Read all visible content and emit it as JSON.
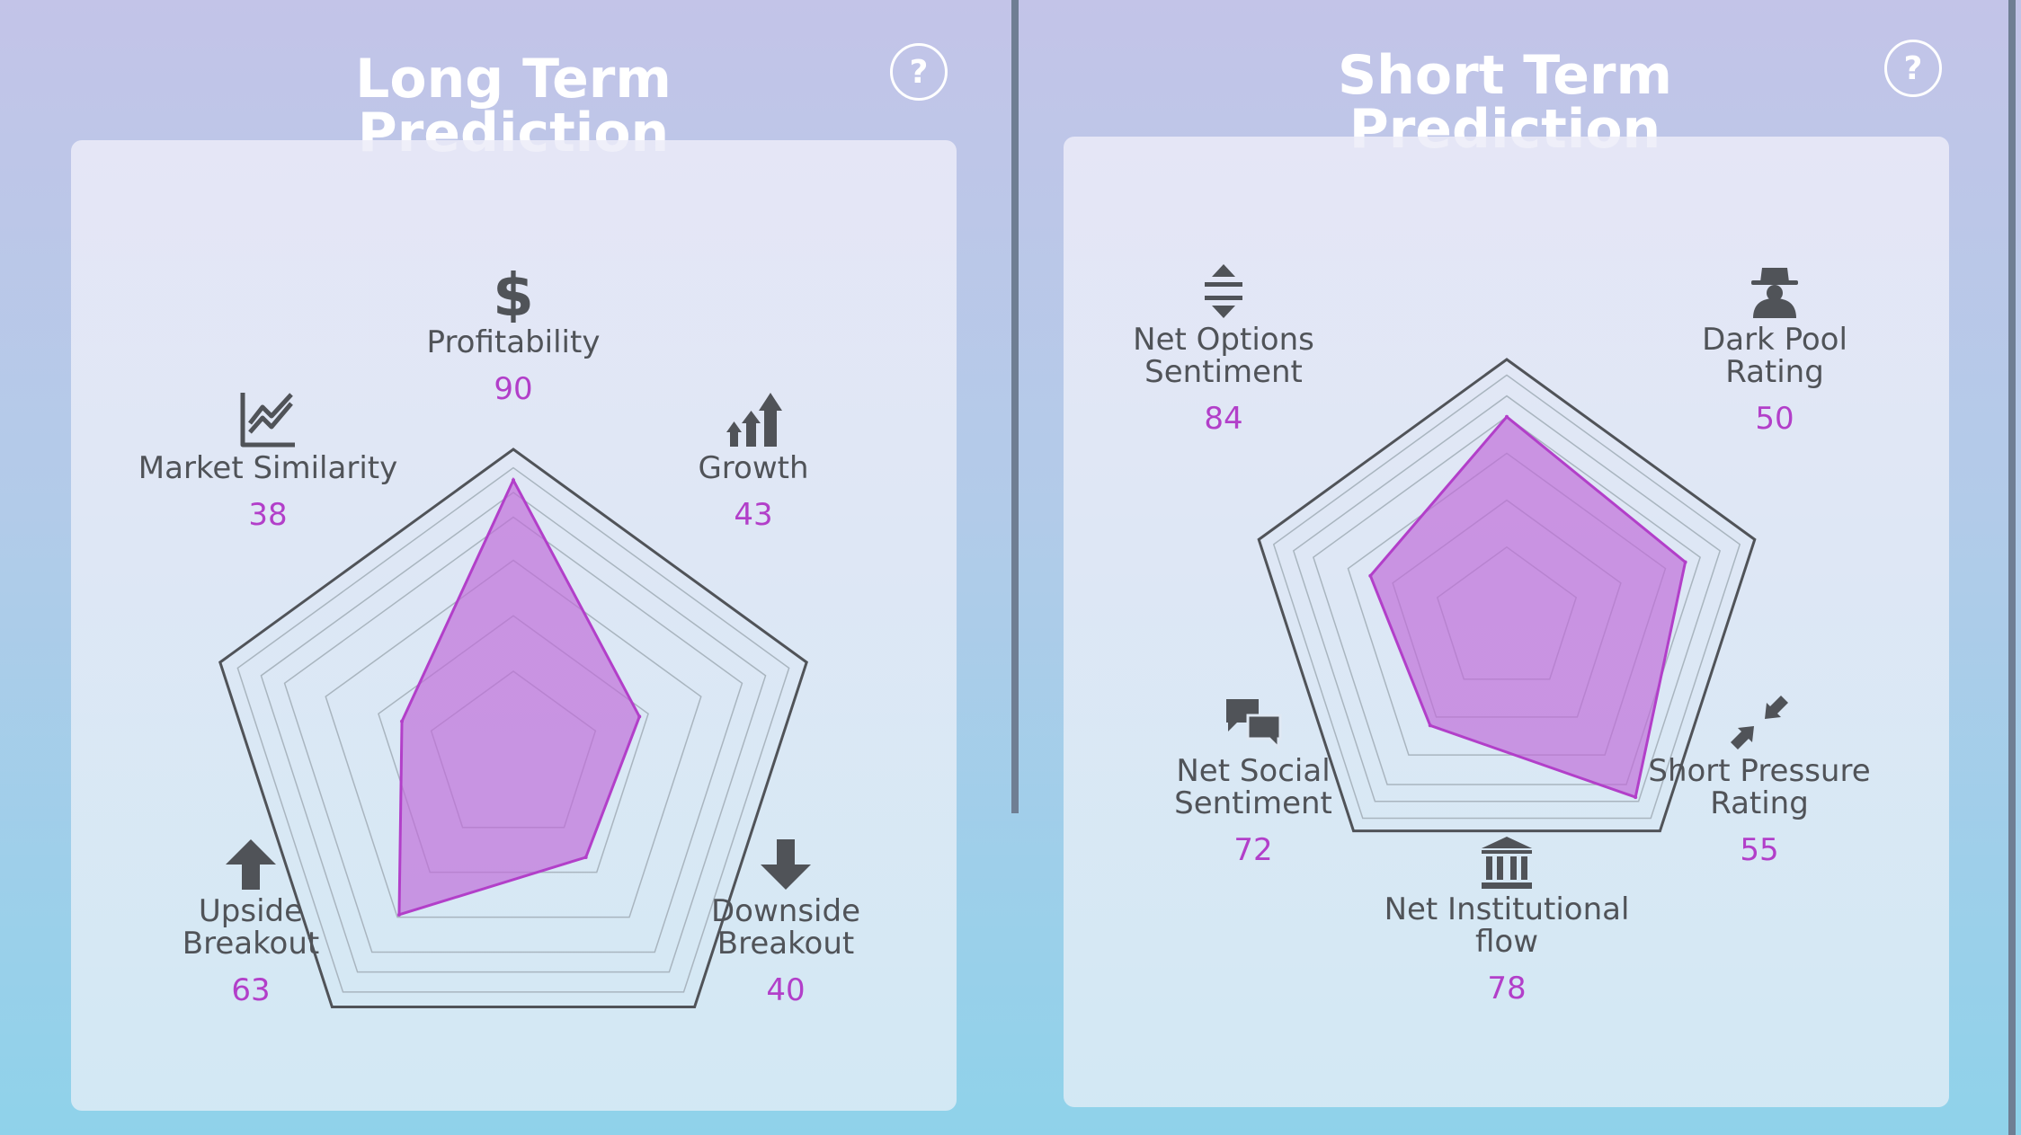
{
  "colors": {
    "accent": "#b23fc9",
    "polygon_fill": "#c06bd8",
    "outer_ring": "#505358",
    "inner_ring": "#a9b5bf",
    "icon": "#505358"
  },
  "panels": [
    {
      "title": "Long Term Prediction",
      "help_label": "?",
      "axes": [
        {
          "label": "Profitability",
          "value": "90",
          "icon": "dollar-icon"
        },
        {
          "label": "Growth",
          "value": "43",
          "icon": "growth-bars-icon"
        },
        {
          "label": "Downside\nBreakout",
          "value": "40",
          "icon": "arrow-down-icon"
        },
        {
          "label": "Upside\nBreakout",
          "value": "63",
          "icon": "arrow-up-icon"
        },
        {
          "label": "Market Similarity",
          "value": "38",
          "icon": "line-chart-icon"
        }
      ]
    },
    {
      "title": "Short Term Prediction",
      "help_label": "?",
      "axes": [
        {
          "label": "Net Options\nSentiment",
          "value": "84",
          "icon": "expand-vertical-icon"
        },
        {
          "label": "Dark Pool\nRating",
          "value": "50",
          "icon": "spy-icon"
        },
        {
          "label": "Short Pressure\nRating",
          "value": "55",
          "icon": "compress-arrows-icon"
        },
        {
          "label": "Net Institutional\nflow",
          "value": "78",
          "icon": "bank-icon"
        },
        {
          "label": "Net Social\nSentiment",
          "value": "72",
          "icon": "chat-bubbles-icon"
        }
      ]
    }
  ],
  "chart_data": [
    {
      "type": "radar",
      "title": "Long Term Prediction",
      "categories": [
        "Profitability",
        "Growth",
        "Downside Breakout",
        "Upside Breakout",
        "Market Similarity"
      ],
      "values": [
        90,
        43,
        40,
        63,
        38
      ],
      "range": [
        0,
        100
      ],
      "grid": true
    },
    {
      "type": "radar",
      "title": "Short Term Prediction",
      "categories": [
        "Net Options Sentiment",
        "Dark Pool Rating",
        "Short Pressure Rating",
        "Net Institutional flow",
        "Net Social Sentiment"
      ],
      "values": [
        84,
        50,
        55,
        78,
        72
      ],
      "range": [
        0,
        100
      ],
      "grid": true
    }
  ]
}
